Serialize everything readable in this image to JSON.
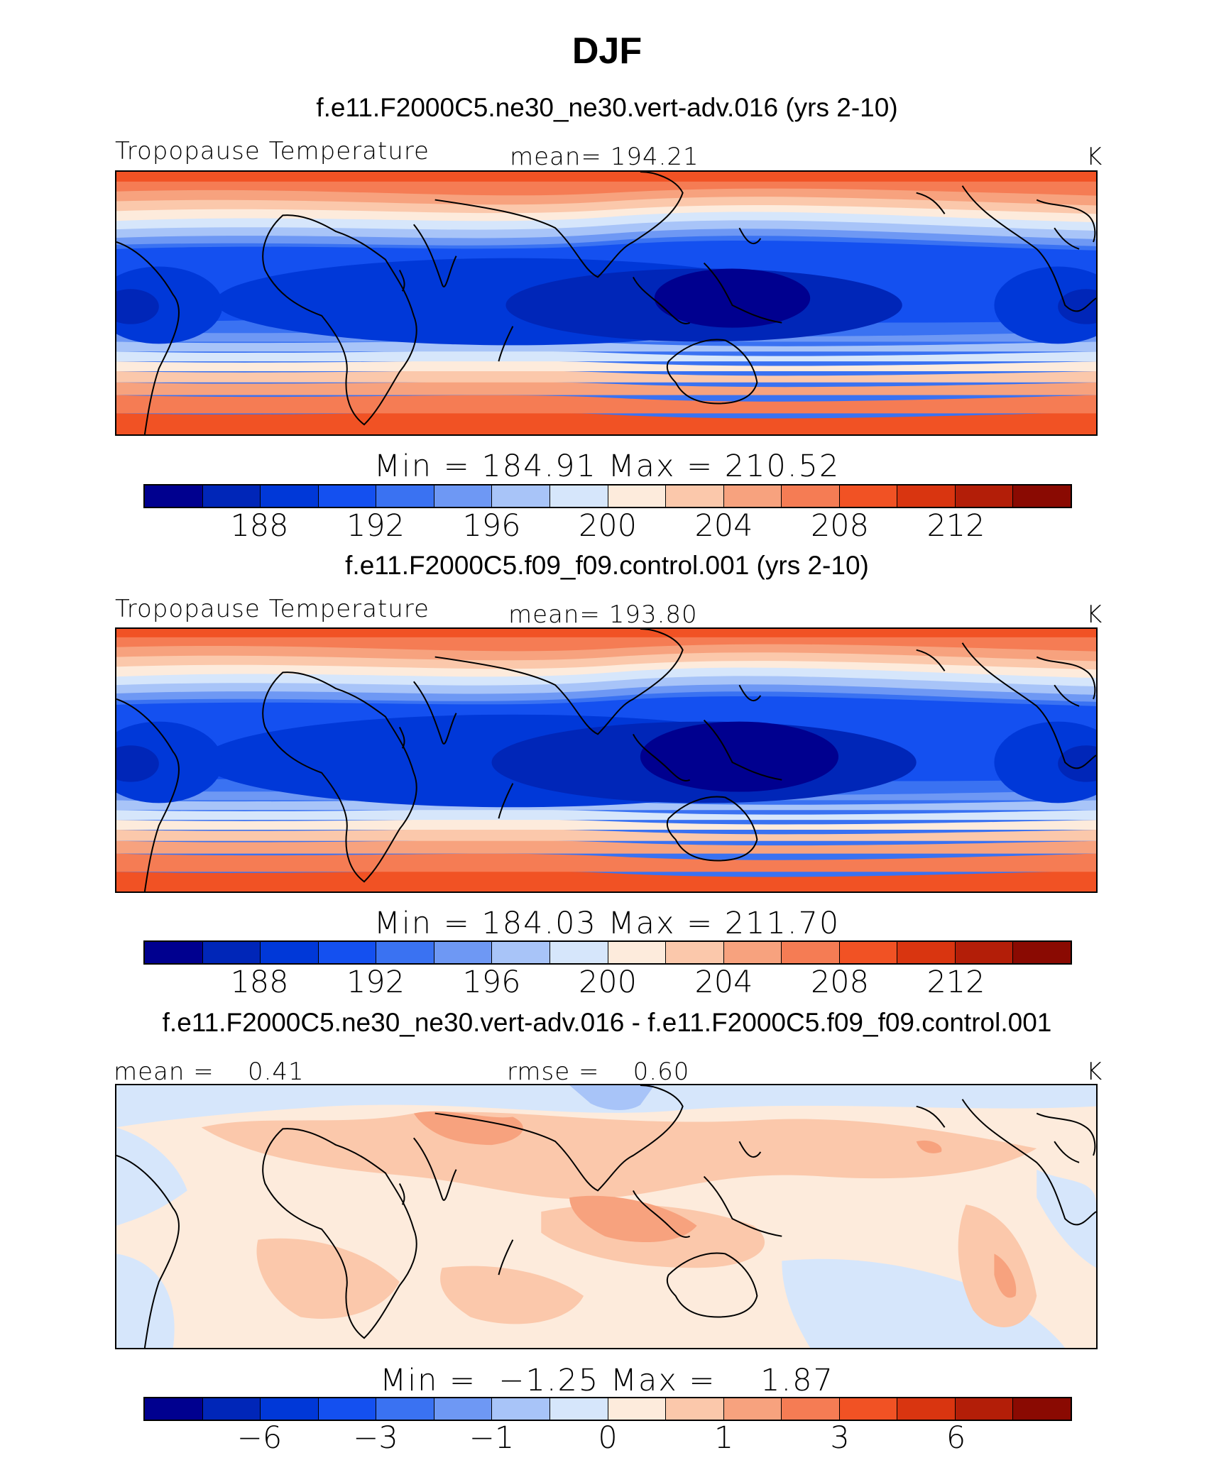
{
  "title": "DJF",
  "units_label": "K",
  "palette": [
    "#00008f",
    "#0026b8",
    "#0038d8",
    "#1450f0",
    "#3a72f2",
    "#6e98f4",
    "#a8c4f8",
    "#d6e6fb",
    "#fdebdc",
    "#fbc8ab",
    "#f7a27e",
    "#f57c54",
    "#f15224",
    "#d93510",
    "#b31e08",
    "#8a0a02"
  ],
  "coastline_color": "#000000",
  "panels": [
    {
      "title": "f.e11.F2000C5.ne30_ne30.vert-adv.016 (yrs 2-10)",
      "left_label": "Tropopause Temperature",
      "center_label": "mean= 194.21",
      "right_label": "K",
      "minmax": "Min = 184.91 Max = 210.52",
      "colorbar_ticks": [
        "188",
        "192",
        "196",
        "200",
        "204",
        "208",
        "212"
      ]
    },
    {
      "title": "f.e11.F2000C5.f09_f09.control.001 (yrs 2-10)",
      "left_label": "Tropopause Temperature",
      "center_label": "mean= 193.80",
      "right_label": "K",
      "minmax": "Min = 184.03 Max = 211.70",
      "colorbar_ticks": [
        "188",
        "192",
        "196",
        "200",
        "204",
        "208",
        "212"
      ]
    },
    {
      "title": "f.e11.F2000C5.ne30_ne30.vert-adv.016 - f.e11.F2000C5.f09_f09.control.001",
      "left_label": "mean =    0.41",
      "center_label": "rmse =    0.60",
      "right_label": "K",
      "minmax": "Min =  −1.25 Max =    1.87",
      "colorbar_ticks": [
        "−6",
        "−3",
        "−1",
        "0",
        "1",
        "3",
        "6"
      ]
    }
  ]
}
